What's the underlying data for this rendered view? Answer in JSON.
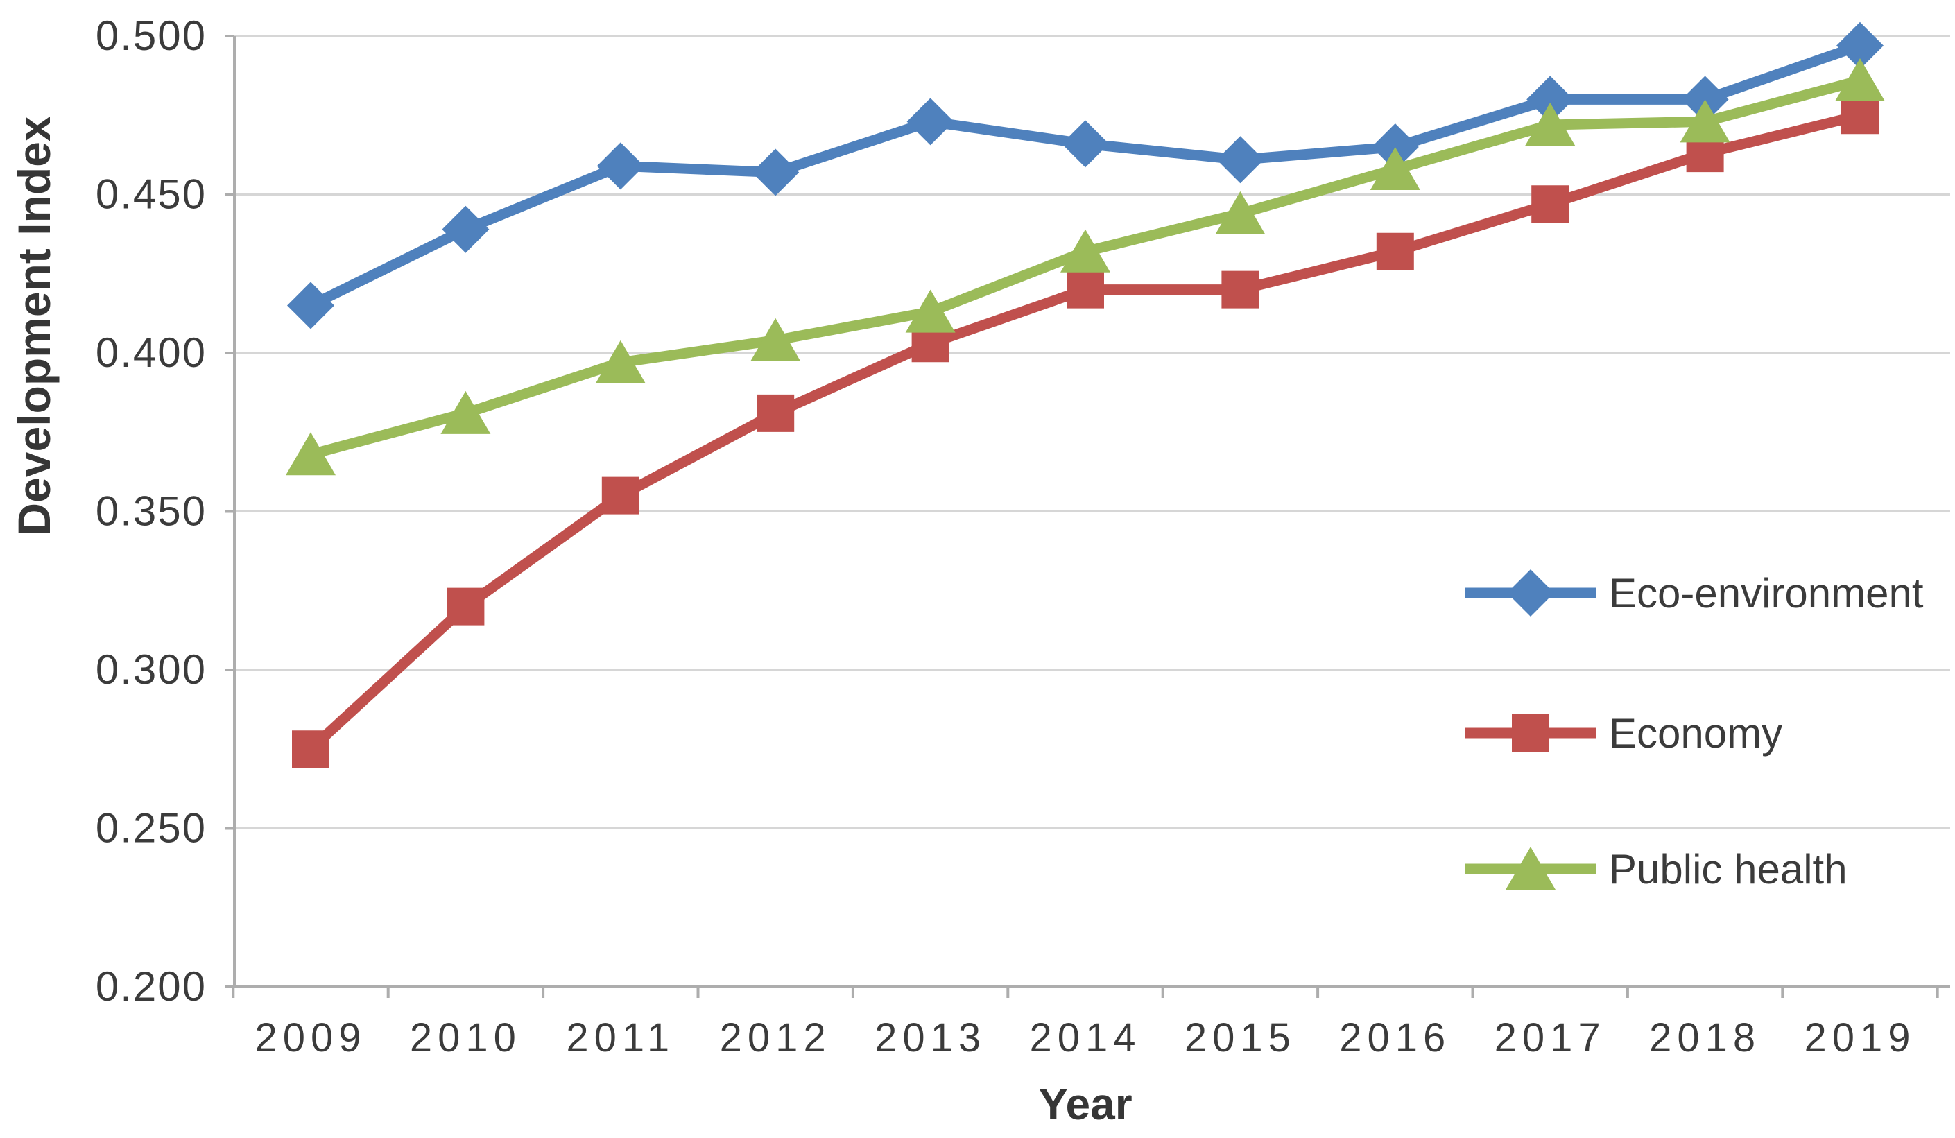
{
  "chart_data": {
    "type": "line",
    "title": "",
    "xlabel": "Year",
    "ylabel": "Development Index",
    "x": [
      2009,
      2010,
      2011,
      2012,
      2013,
      2014,
      2015,
      2016,
      2017,
      2018,
      2019
    ],
    "ylim": [
      0.2,
      0.5
    ],
    "ytick_step": 0.05,
    "ytick_labels": [
      "0.500",
      "0.450",
      "0.400",
      "0.350",
      "0.300",
      "0.250",
      "0.200"
    ],
    "grid": "horizontal",
    "legend_position": "inside-right",
    "series": [
      {
        "name": "Eco-environment",
        "marker": "diamond",
        "color": "#4F81BD",
        "values": [
          0.415,
          0.439,
          0.459,
          0.457,
          0.473,
          0.466,
          0.461,
          0.465,
          0.48,
          0.48,
          0.497
        ]
      },
      {
        "name": "Economy",
        "marker": "square",
        "color": "#C0504D",
        "values": [
          0.275,
          0.32,
          0.355,
          0.381,
          0.403,
          0.42,
          0.42,
          0.432,
          0.447,
          0.463,
          0.475
        ]
      },
      {
        "name": "Public health",
        "marker": "triangle",
        "color": "#9BBB59",
        "values": [
          0.368,
          0.381,
          0.397,
          0.404,
          0.413,
          0.432,
          0.444,
          0.458,
          0.472,
          0.473,
          0.486
        ]
      }
    ],
    "colors": {
      "gridline": "#D6D6D6",
      "axis": "#ADADAD",
      "tick_text": "#3B3B3B",
      "title_text": "#363636"
    }
  }
}
